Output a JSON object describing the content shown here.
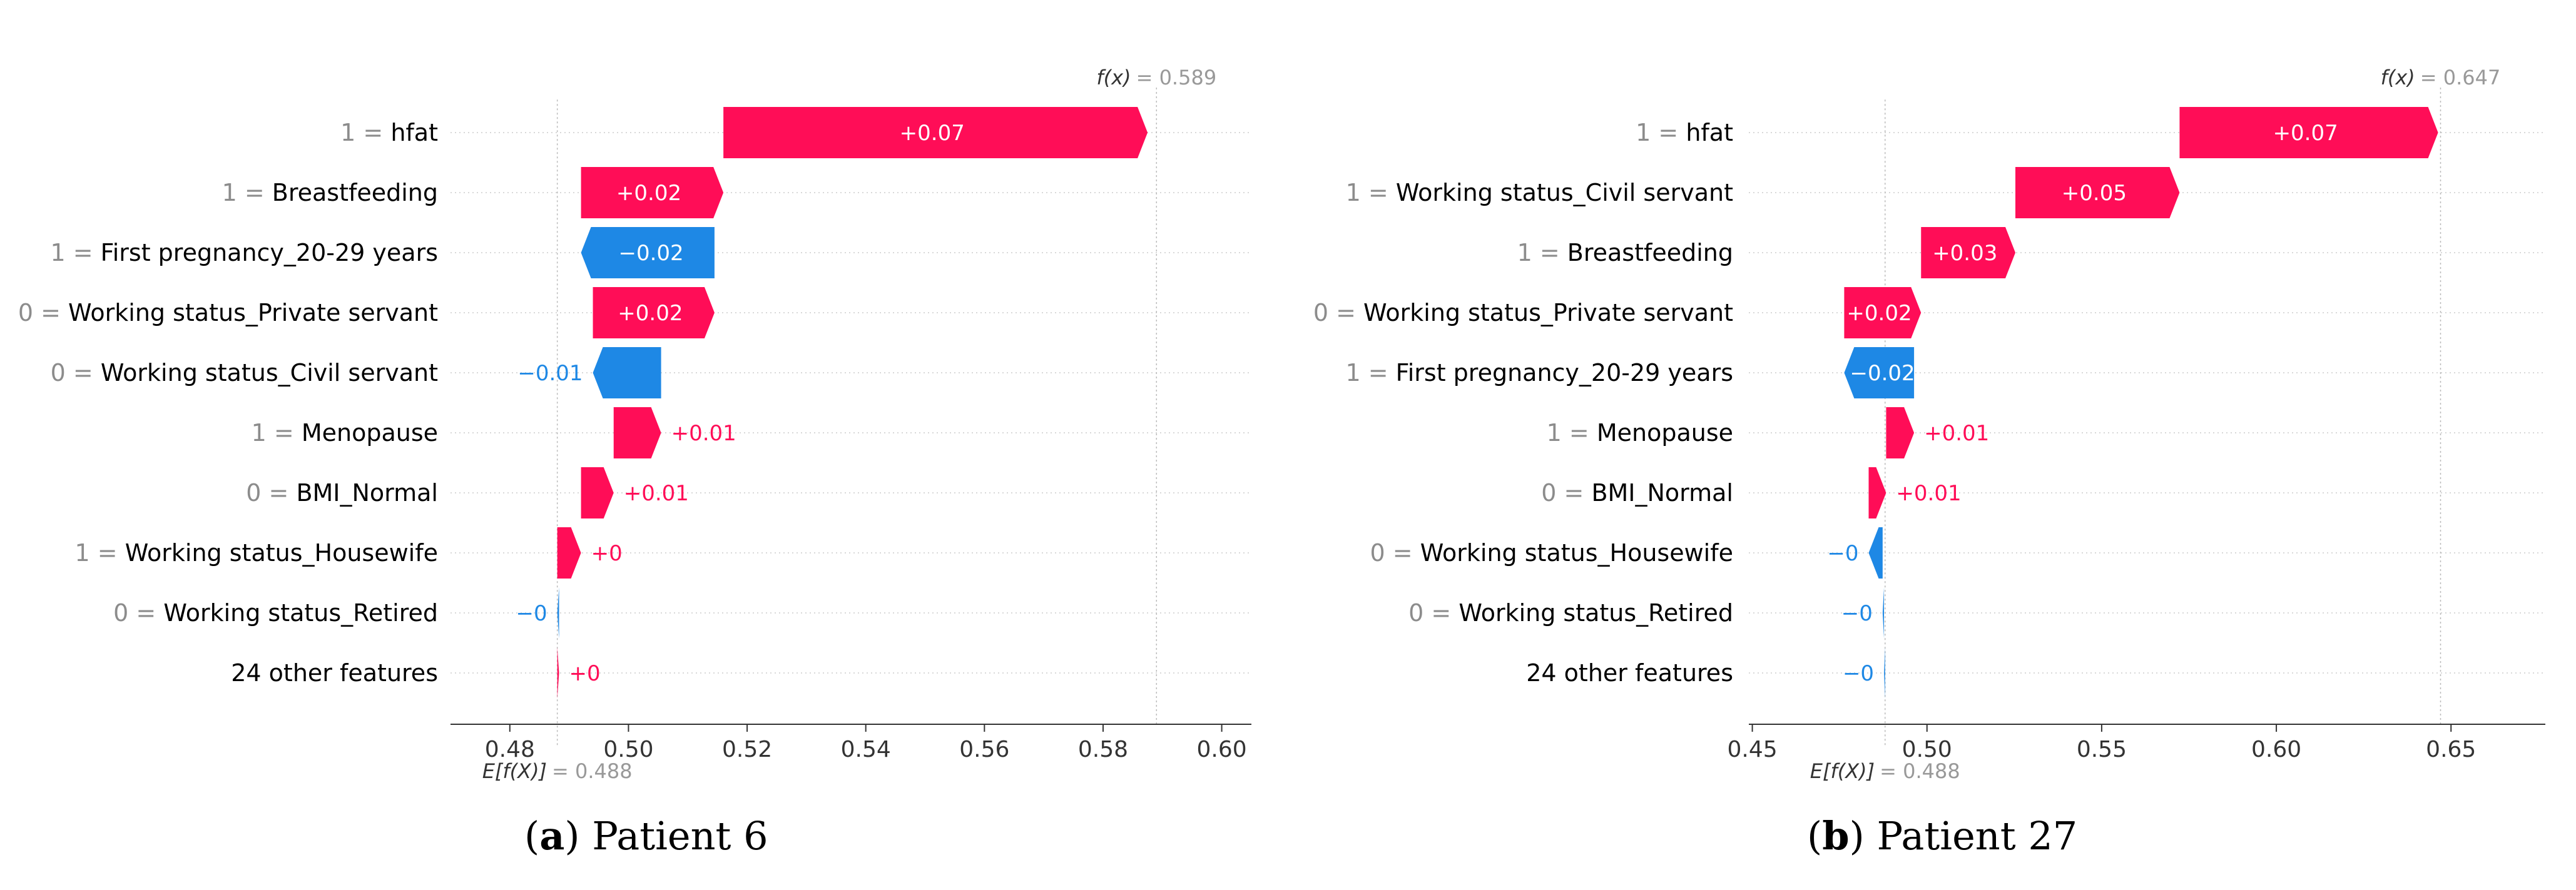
{
  "colors": {
    "positive": "#ff0d57",
    "negative": "#1e88e5",
    "grey": "#999999"
  },
  "captions": [
    {
      "letter": "a",
      "text": "Patient 6"
    },
    {
      "letter": "b",
      "text": "Patient 27"
    }
  ],
  "chart_data": [
    {
      "type": "waterfall",
      "base_value": 0.488,
      "output_value": 0.589,
      "base_label": "E[f(X)]",
      "base_text": "= 0.488",
      "output_label": "f(x)",
      "output_text": "= 0.589",
      "xlim": [
        0.47,
        0.605
      ],
      "xticks": [
        0.48,
        0.5,
        0.52,
        0.54,
        0.56,
        0.58,
        0.6
      ],
      "tick_labels": [
        "0.48",
        "0.50",
        "0.52",
        "0.54",
        "0.56",
        "0.58",
        "0.60"
      ],
      "features": [
        {
          "value": "1 =",
          "name": "hfat",
          "contribution": 0.0715,
          "label": "+0.07"
        },
        {
          "value": "1 =",
          "name": "Breastfeeding",
          "contribution": 0.024,
          "label": "+0.02"
        },
        {
          "value": "1 =",
          "name": "First pregnancy_20-29 years",
          "contribution": -0.0225,
          "label": "−0.02"
        },
        {
          "value": "0 =",
          "name": "Working status_Private servant",
          "contribution": 0.0205,
          "label": "+0.02"
        },
        {
          "value": "0 =",
          "name": "Working status_Civil servant",
          "contribution": -0.0115,
          "label": "−0.01"
        },
        {
          "value": "1 =",
          "name": "Menopause",
          "contribution": 0.008,
          "label": "+0.01"
        },
        {
          "value": "0 =",
          "name": "BMI_Normal",
          "contribution": 0.0055,
          "label": "+0.01"
        },
        {
          "value": "1 =",
          "name": "Working status_Housewife",
          "contribution": 0.004,
          "label": "+0"
        },
        {
          "value": "0 =",
          "name": "Working status_Retired",
          "contribution": -0.0003,
          "label": "−0"
        },
        {
          "value": "",
          "name": "24 other features",
          "contribution": 0.0003,
          "label": "+0"
        }
      ]
    },
    {
      "type": "waterfall",
      "base_value": 0.488,
      "output_value": 0.647,
      "base_label": "E[f(X)]",
      "base_text": "= 0.488",
      "output_label": "f(x)",
      "output_text": "= 0.647",
      "xlim": [
        0.449,
        0.677
      ],
      "xticks": [
        0.45,
        0.5,
        0.55,
        0.6,
        0.65
      ],
      "tick_labels": [
        "0.45",
        "0.50",
        "0.55",
        "0.60",
        "0.65"
      ],
      "features": [
        {
          "value": "1 =",
          "name": "hfat",
          "contribution": 0.074,
          "label": "+0.07"
        },
        {
          "value": "1 =",
          "name": "Working status_Civil servant",
          "contribution": 0.047,
          "label": "+0.05"
        },
        {
          "value": "1 =",
          "name": "Breastfeeding",
          "contribution": 0.027,
          "label": "+0.03"
        },
        {
          "value": "0 =",
          "name": "Working status_Private servant",
          "contribution": 0.022,
          "label": "+0.02"
        },
        {
          "value": "1 =",
          "name": "First pregnancy_20-29 years",
          "contribution": -0.02,
          "label": "−0.02"
        },
        {
          "value": "1 =",
          "name": "Menopause",
          "contribution": 0.008,
          "label": "+0.01"
        },
        {
          "value": "0 =",
          "name": "BMI_Normal",
          "contribution": 0.005,
          "label": "+0.01"
        },
        {
          "value": "0 =",
          "name": "Working status_Housewife",
          "contribution": -0.004,
          "label": "−0"
        },
        {
          "value": "0 =",
          "name": "Working status_Retired",
          "contribution": -0.0004,
          "label": "−0"
        },
        {
          "value": "",
          "name": "24 other features",
          "contribution": -0.0003,
          "label": "−0"
        }
      ]
    }
  ]
}
